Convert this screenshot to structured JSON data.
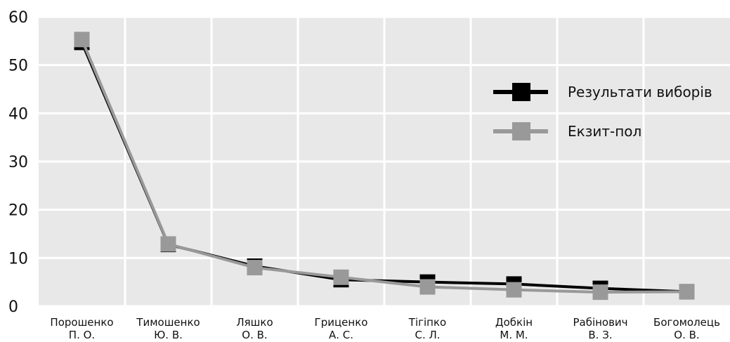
{
  "chart_data": {
    "type": "line",
    "title": "",
    "xlabel": "",
    "ylabel": "",
    "categories": [
      [
        "Порошенко",
        "П. О."
      ],
      [
        "Тимошенко",
        "Ю. В."
      ],
      [
        "Ляшко",
        "О. В."
      ],
      [
        "Гриценко",
        "А. С."
      ],
      [
        "Тігіпко",
        "С. Л."
      ],
      [
        "Добкін",
        "М. М."
      ],
      [
        "Рабінович",
        "В. З."
      ],
      [
        "Богомолець",
        "О. В."
      ]
    ],
    "ylim": [
      0,
      60
    ],
    "yticks": [
      0,
      10,
      20,
      30,
      40,
      50,
      60
    ],
    "grid": true,
    "legend_position": "right",
    "series": [
      {
        "name": "Результати виборів",
        "color": "#000000",
        "values": [
          54.7,
          12.8,
          8.3,
          5.5,
          5.0,
          4.6,
          3.7,
          3.0
        ]
      },
      {
        "name": "Екзит-пол",
        "color": "#999999",
        "values": [
          55.3,
          12.9,
          8.0,
          6.0,
          4.0,
          3.4,
          2.9,
          3.0
        ]
      }
    ]
  }
}
